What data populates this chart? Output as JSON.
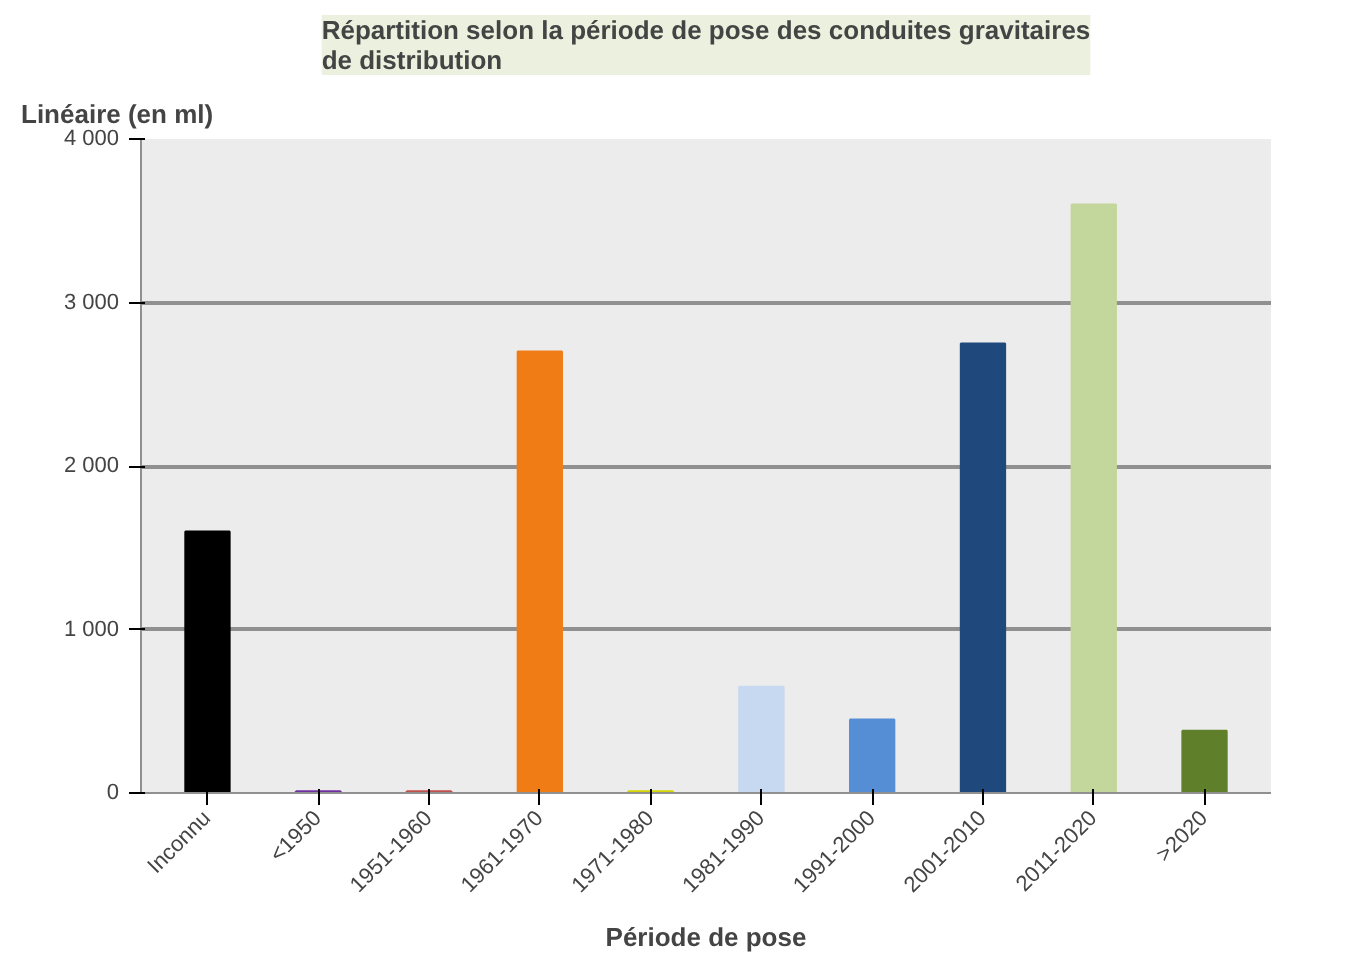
{
  "chart_data": {
    "type": "bar",
    "title": "Répartition selon la période de pose des conduites gravitaires de distribution",
    "xlabel": "Période de pose",
    "ylabel": "Linéaire (en ml)",
    "categories": [
      "Inconnu",
      "<1950",
      "1951-1960",
      "1961-1970",
      "1971-1980",
      "1981-1990",
      "1991-2000",
      "2001-2010",
      "2011-2020",
      ">2020"
    ],
    "values": [
      1600,
      10,
      10,
      2700,
      10,
      650,
      450,
      2750,
      3600,
      380
    ],
    "colors": [
      "#000000",
      "#7030a0",
      "#c0504d",
      "#f07c16",
      "#d4d400",
      "#c6d9f1",
      "#558ed5",
      "#1f497d",
      "#c3d69b",
      "#5f7f2a"
    ],
    "ylim": [
      0,
      4000
    ],
    "yticks": [
      0,
      {
        "value": 1000,
        "label": "1 000"
      },
      {
        "value": 2000,
        "label": "2 000"
      },
      {
        "value": 3000,
        "label": "3 000"
      },
      {
        "value": 4000,
        "label": "4 000"
      }
    ],
    "grid": "y"
  }
}
